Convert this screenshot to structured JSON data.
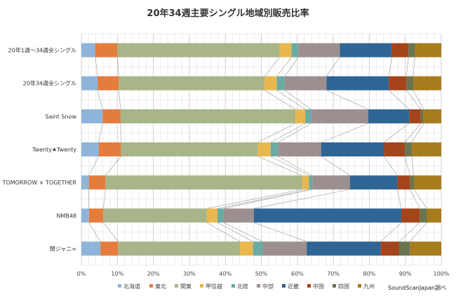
{
  "chart_data": {
    "type": "bar",
    "orientation": "horizontal",
    "stacked": "percent",
    "title": "20年34週主要シングル地域別販売比率",
    "categories": [
      "20年1週～34週全シングル",
      "20年34週全シングル",
      "Saint Snow",
      "Twenty★Twenty",
      "TOMORROW × TOGETHER",
      "NMB48",
      "関ジャニ∞"
    ],
    "xlim": [
      0,
      100
    ],
    "xticks": [
      "0%",
      "10%",
      "20%",
      "30%",
      "40%",
      "50%",
      "60%",
      "70%",
      "80%",
      "90%",
      "100%"
    ],
    "grid": true,
    "legend_position": "bottom",
    "series": [
      {
        "name": "北海道",
        "color": "#8fb4d9",
        "values": [
          3.9,
          4.5,
          5.9,
          4.8,
          2.1,
          2.1,
          5.3
        ]
      },
      {
        "name": "東北",
        "color": "#e47c3c",
        "values": [
          6.1,
          5.9,
          5.0,
          6.2,
          4.6,
          4.0,
          4.9
        ]
      },
      {
        "name": "関東",
        "color": "#a7b588",
        "values": [
          45.1,
          40.5,
          48.6,
          38.0,
          54.6,
          28.7,
          33.9
        ]
      },
      {
        "name": "甲信越",
        "color": "#e8b84e",
        "values": [
          3.3,
          3.4,
          2.7,
          3.6,
          1.9,
          3.0,
          3.6
        ]
      },
      {
        "name": "北陸",
        "color": "#6aaba3",
        "values": [
          1.9,
          2.2,
          1.6,
          2.0,
          1.0,
          1.7,
          2.6
        ]
      },
      {
        "name": "中部",
        "color": "#9c8f8f",
        "values": [
          11.5,
          11.6,
          15.9,
          12.0,
          10.4,
          8.4,
          12.3
        ]
      },
      {
        "name": "近畿",
        "color": "#2f6595",
        "values": [
          14.5,
          17.3,
          11.4,
          17.5,
          13.2,
          41.0,
          20.6
        ]
      },
      {
        "name": "中国",
        "color": "#a4441a",
        "values": [
          4.6,
          4.9,
          3.2,
          5.8,
          3.5,
          5.1,
          5.1
        ]
      },
      {
        "name": "四国",
        "color": "#6a7550",
        "values": [
          1.8,
          1.9,
          0.8,
          1.9,
          1.1,
          2.0,
          3.0
        ]
      },
      {
        "name": "九州",
        "color": "#a67c1c",
        "values": [
          7.3,
          7.8,
          4.9,
          8.2,
          7.6,
          4.0,
          8.7
        ]
      }
    ]
  },
  "source": "SoundScanJapan調べ"
}
